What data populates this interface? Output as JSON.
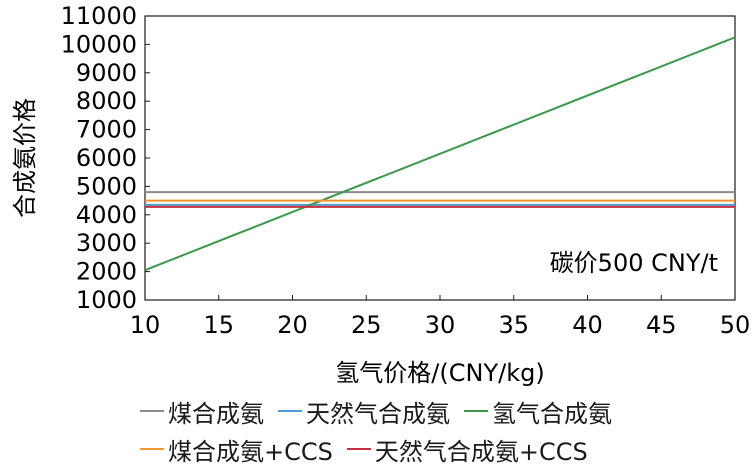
{
  "chart_data": {
    "type": "line",
    "xlabel": "氢气价格/(CNY/kg)",
    "ylabel": "合成氨价格",
    "xlim": [
      10,
      50
    ],
    "ylim": [
      1000,
      11000
    ],
    "xticks": [
      "10",
      "15",
      "20",
      "25",
      "30",
      "35",
      "40",
      "45",
      "50"
    ],
    "yticks": [
      "1000",
      "2000",
      "3000",
      "4000",
      "5000",
      "6000",
      "7000",
      "8000",
      "9000",
      "10000",
      "11000"
    ],
    "grid": false,
    "legend_position": "bottom",
    "annotation": "碳价500 CNY/t",
    "series": [
      {
        "name": "煤合成氨",
        "color": "#8c8c8c",
        "x": [
          10,
          50
        ],
        "y": [
          4800,
          4800
        ]
      },
      {
        "name": "天然气合成氨",
        "color": "#4a9fd6",
        "x": [
          10,
          50
        ],
        "y": [
          4350,
          4350
        ]
      },
      {
        "name": "氢气合成氨",
        "color": "#3a9a4a",
        "x": [
          10,
          50
        ],
        "y": [
          2050,
          10250
        ]
      },
      {
        "name": "煤合成氨+CCS",
        "color": "#f0962e",
        "x": [
          10,
          50
        ],
        "y": [
          4500,
          4500
        ]
      },
      {
        "name": "天然气合成氨+CCS",
        "color": "#c8303e",
        "x": [
          10,
          50
        ],
        "y": [
          4280,
          4280
        ]
      }
    ]
  }
}
